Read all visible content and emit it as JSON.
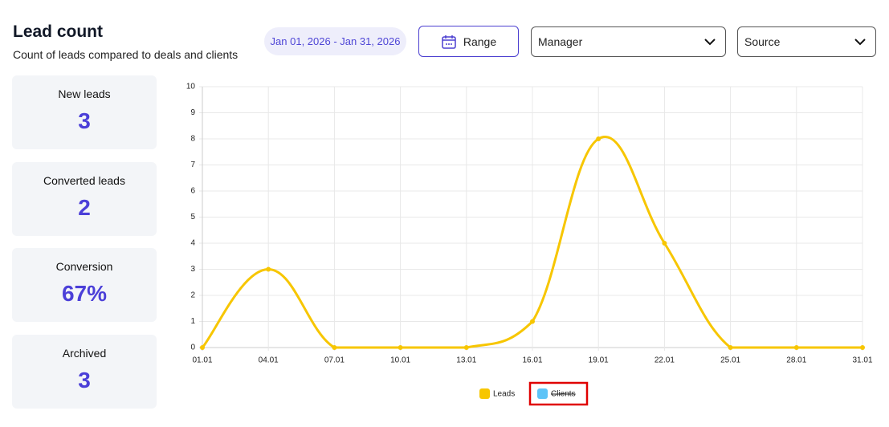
{
  "header": {
    "title": "Lead count",
    "subtitle": "Count of leads compared to deals and clients"
  },
  "filters": {
    "date_range": "Jan 01, 2026 - Jan 31, 2026",
    "range_button": "Range",
    "manager": "Manager",
    "source": "Source"
  },
  "stats": [
    {
      "label": "New leads",
      "value": "3"
    },
    {
      "label": "Converted leads",
      "value": "2"
    },
    {
      "label": "Conversion",
      "value": "67%"
    },
    {
      "label": "Archived",
      "value": "3"
    }
  ],
  "chart_data": {
    "type": "line",
    "categories": [
      "01.01",
      "04.01",
      "07.01",
      "10.01",
      "13.01",
      "16.01",
      "19.01",
      "22.01",
      "25.01",
      "28.01",
      "31.01"
    ],
    "series": [
      {
        "name": "Leads",
        "color": "#f7c600",
        "values": [
          0,
          3,
          0,
          0,
          0,
          1,
          8,
          4,
          0,
          0,
          0
        ]
      },
      {
        "name": "Clients",
        "color": "#5ec4f7",
        "hidden": true
      }
    ],
    "ylim": [
      0,
      10
    ],
    "yticks": [
      0,
      1,
      2,
      3,
      4,
      5,
      6,
      7,
      8,
      9,
      10
    ],
    "grid": true,
    "legend": "bottom"
  }
}
